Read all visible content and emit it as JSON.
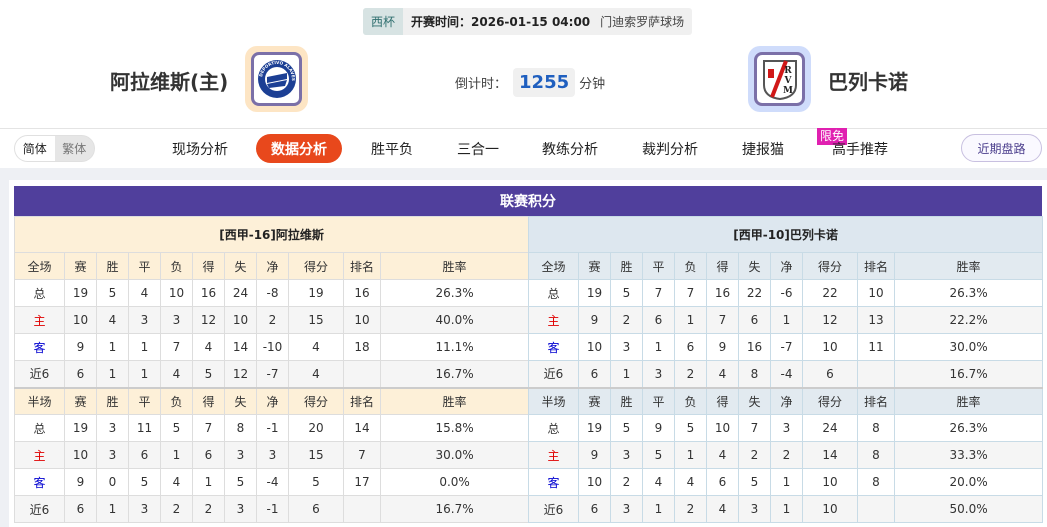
{
  "match": {
    "cup": "西杯",
    "time": "开赛时间：2026-01-15 04:00",
    "venue": "门迪索罗萨球场",
    "home_team": "阿拉维斯(主)",
    "away_team": "巴列卡诺",
    "countdown_label": "倒计时：",
    "countdown_value": "1255",
    "countdown_unit": "分钟",
    "home_logo_text": "DEPORTIVO ALAVES",
    "away_logo_text": "RVM"
  },
  "nav": {
    "lang": [
      "简体",
      "繁体"
    ],
    "tabs": [
      "现场分析",
      "数据分析",
      "胜平负",
      "三合一",
      "教练分析",
      "裁判分析",
      "捷报猫",
      "高手推荐"
    ],
    "active": "数据分析",
    "badge": "限免",
    "recent": "近期盘路"
  },
  "standings": {
    "title": "联赛积分",
    "columns_full": [
      "全场",
      "赛",
      "胜",
      "平",
      "负",
      "得",
      "失",
      "净",
      "得分",
      "排名",
      "胜率"
    ],
    "columns_half": [
      "半场",
      "赛",
      "胜",
      "平",
      "负",
      "得",
      "失",
      "净",
      "得分",
      "排名",
      "胜率"
    ],
    "home": {
      "title": "[西甲-16]阿拉维斯",
      "full": [
        [
          "总",
          "19",
          "5",
          "4",
          "10",
          "16",
          "24",
          "-8",
          "19",
          "16",
          "26.3%"
        ],
        [
          "主",
          "10",
          "4",
          "3",
          "3",
          "12",
          "10",
          "2",
          "15",
          "10",
          "40.0%"
        ],
        [
          "客",
          "9",
          "1",
          "1",
          "7",
          "4",
          "14",
          "-10",
          "4",
          "18",
          "11.1%"
        ],
        [
          "近6",
          "6",
          "1",
          "1",
          "4",
          "5",
          "12",
          "-7",
          "4",
          "",
          "16.7%"
        ]
      ],
      "half": [
        [
          "总",
          "19",
          "3",
          "11",
          "5",
          "7",
          "8",
          "-1",
          "20",
          "14",
          "15.8%"
        ],
        [
          "主",
          "10",
          "3",
          "6",
          "1",
          "6",
          "3",
          "3",
          "15",
          "7",
          "30.0%"
        ],
        [
          "客",
          "9",
          "0",
          "5",
          "4",
          "1",
          "5",
          "-4",
          "5",
          "17",
          "0.0%"
        ],
        [
          "近6",
          "6",
          "1",
          "3",
          "2",
          "2",
          "3",
          "-1",
          "6",
          "",
          "16.7%"
        ]
      ]
    },
    "away": {
      "title": "[西甲-10]巴列卡诺",
      "full": [
        [
          "总",
          "19",
          "5",
          "7",
          "7",
          "16",
          "22",
          "-6",
          "22",
          "10",
          "26.3%"
        ],
        [
          "主",
          "9",
          "2",
          "6",
          "1",
          "7",
          "6",
          "1",
          "12",
          "13",
          "22.2%"
        ],
        [
          "客",
          "10",
          "3",
          "1",
          "6",
          "9",
          "16",
          "-7",
          "10",
          "11",
          "30.0%"
        ],
        [
          "近6",
          "6",
          "1",
          "3",
          "2",
          "4",
          "8",
          "-4",
          "6",
          "",
          "16.7%"
        ]
      ],
      "half": [
        [
          "总",
          "19",
          "5",
          "9",
          "5",
          "10",
          "7",
          "3",
          "24",
          "8",
          "26.3%"
        ],
        [
          "主",
          "9",
          "3",
          "5",
          "1",
          "4",
          "2",
          "2",
          "14",
          "8",
          "33.3%"
        ],
        [
          "客",
          "10",
          "2",
          "4",
          "4",
          "6",
          "5",
          "1",
          "10",
          "8",
          "20.0%"
        ],
        [
          "近6",
          "6",
          "3",
          "1",
          "2",
          "4",
          "3",
          "1",
          "10",
          "",
          "50.0%"
        ]
      ]
    }
  },
  "colors": {
    "header": "#503f9c",
    "active_tab": "#e8481c",
    "home_label": "#e00000",
    "away_label": "#0000d0"
  }
}
